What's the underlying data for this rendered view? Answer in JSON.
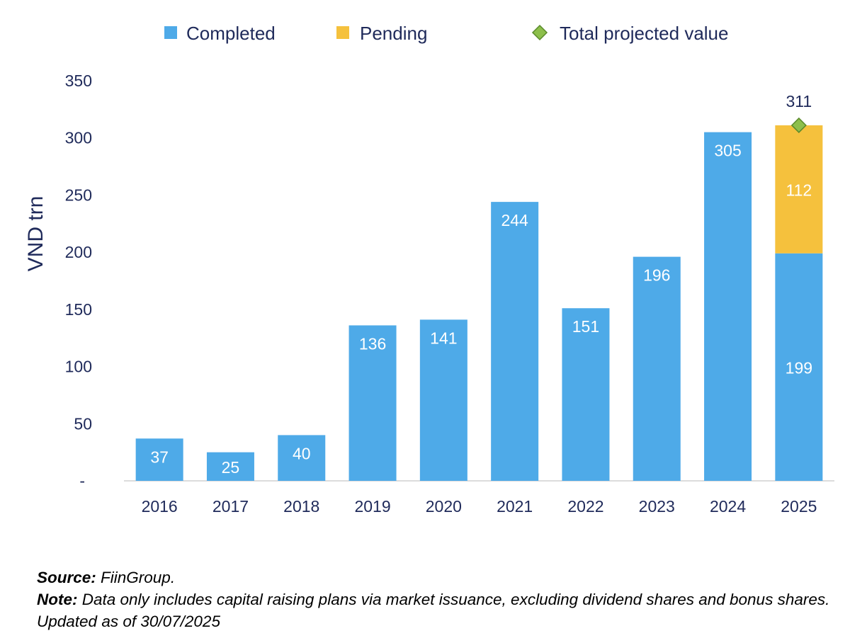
{
  "chart_data": {
    "type": "bar",
    "stacked": true,
    "categories": [
      "2016",
      "2017",
      "2018",
      "2019",
      "2020",
      "2021",
      "2022",
      "2023",
      "2024",
      "2025"
    ],
    "series": [
      {
        "name": "Completed",
        "color": "#4eaae8",
        "values": [
          37,
          25,
          40,
          136,
          141,
          244,
          151,
          196,
          305,
          199
        ]
      },
      {
        "name": "Pending",
        "color": "#f5c13d",
        "values": [
          0,
          0,
          0,
          0,
          0,
          0,
          0,
          0,
          0,
          112
        ]
      }
    ],
    "markers": [
      {
        "name": "Total projected value",
        "category": "2025",
        "value": 311,
        "label": "311",
        "color": "#8dbf4b"
      }
    ],
    "data_labels": {
      "Completed": [
        "37",
        "25",
        "40",
        "136",
        "141",
        "244",
        "151",
        "196",
        "305",
        "199"
      ],
      "Pending": [
        "",
        "",
        "",
        "",
        "",
        "",
        "",
        "",
        "",
        "112"
      ]
    },
    "ylabel": "VND trn",
    "ylim": [
      0,
      350
    ],
    "yticks": [
      0,
      50,
      100,
      150,
      200,
      250,
      300,
      350
    ],
    "ytick_labels": [
      "-",
      "50",
      "100",
      "150",
      "200",
      "250",
      "300",
      "350"
    ],
    "legend_position": "top",
    "grid": false
  },
  "notes": {
    "source_label": "Source:",
    "source_text": " FiinGroup.",
    "note_label": "Note:",
    "note_text": " Data only includes capital raising plans via market issuance, excluding dividend shares and bonus shares. Updated as of 30/07/2025"
  }
}
